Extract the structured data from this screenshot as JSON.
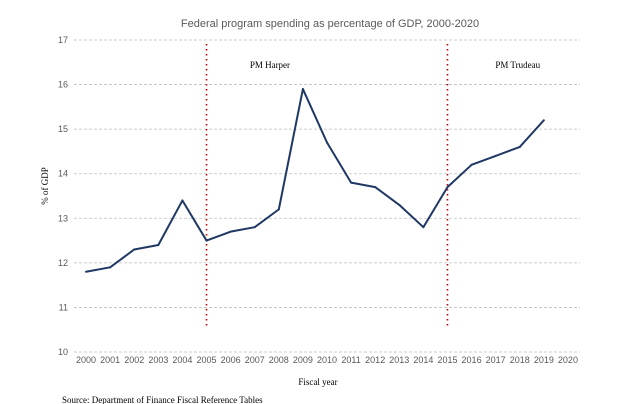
{
  "chart_data": {
    "type": "line",
    "title": "Federal program spending as percentage of GDP, 2000-2020",
    "xlabel": "Fiscal year",
    "ylabel": "% of GDP",
    "source": "Source: Department of Finance Fiscal Reference Tables",
    "x": [
      "2000",
      "2001",
      "2002",
      "2003",
      "2004",
      "2005",
      "2006",
      "2007",
      "2008",
      "2009",
      "2010",
      "2011",
      "2012",
      "2013",
      "2014",
      "2015",
      "2016",
      "2017",
      "2018",
      "2019",
      "2020"
    ],
    "y_ticks": [
      "10",
      "11",
      "12",
      "13",
      "14",
      "15",
      "16",
      "17"
    ],
    "ylim": [
      10,
      17
    ],
    "grid": true,
    "series": [
      {
        "color": "#1f3864",
        "values": [
          11.8,
          11.9,
          12.3,
          12.4,
          13.4,
          12.5,
          12.7,
          12.8,
          13.2,
          15.9,
          14.7,
          13.8,
          13.7,
          13.3,
          12.8,
          13.7,
          14.2,
          14.4,
          14.6,
          15.2,
          null
        ]
      }
    ],
    "annotations": [
      {
        "label": "PM Harper",
        "at_year": "2005"
      },
      {
        "label": "PM Trudeau",
        "at_year": "2015"
      }
    ],
    "annotation_line_color": "#c00000"
  }
}
